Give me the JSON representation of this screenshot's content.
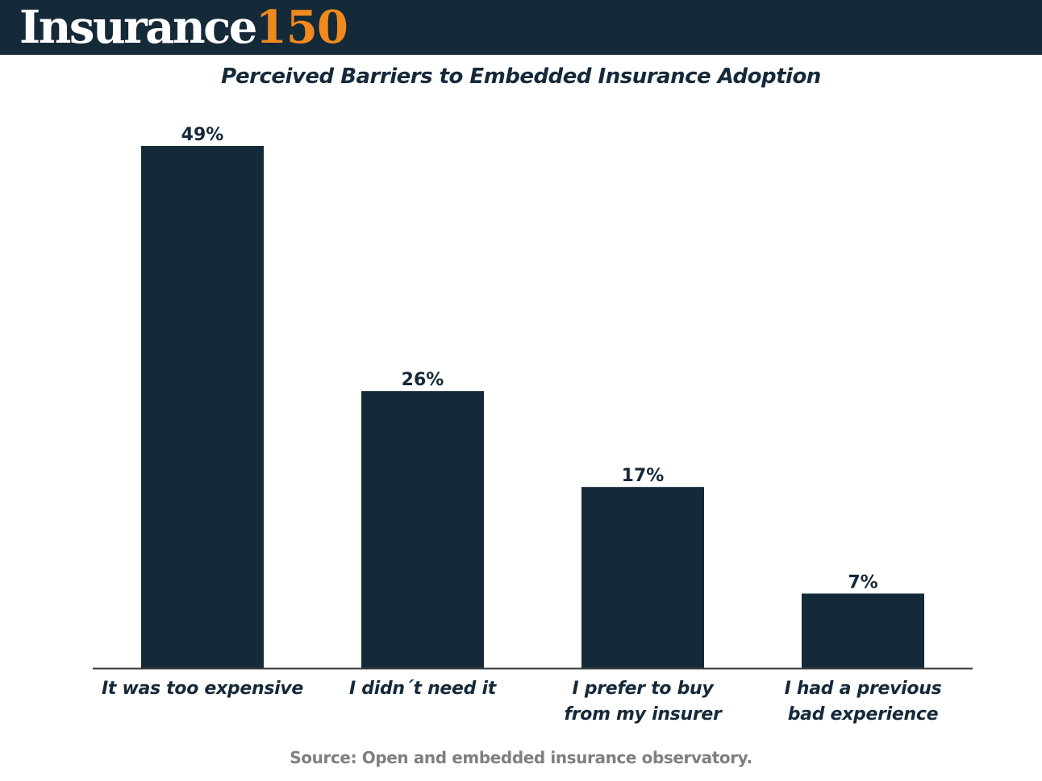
{
  "header": {
    "logo_word": "Insurance",
    "logo_number": "150"
  },
  "chart_data": {
    "type": "bar",
    "title": "Perceived Barriers to Embedded Insurance Adoption",
    "categories": [
      [
        "It was too expensive"
      ],
      [
        "I didn´t need it"
      ],
      [
        "I prefer to buy",
        "from my insurer"
      ],
      [
        "I had a previous",
        "bad experience"
      ]
    ],
    "values": [
      49,
      26,
      17,
      7
    ],
    "value_labels": [
      "49%",
      "26%",
      "17%",
      "7%"
    ],
    "unit": "%",
    "ylim": [
      0,
      49
    ],
    "grid": false,
    "legend": "none",
    "bar_color": "#152a38"
  },
  "footer": {
    "source": "Source: Open and embedded insurance observatory."
  }
}
